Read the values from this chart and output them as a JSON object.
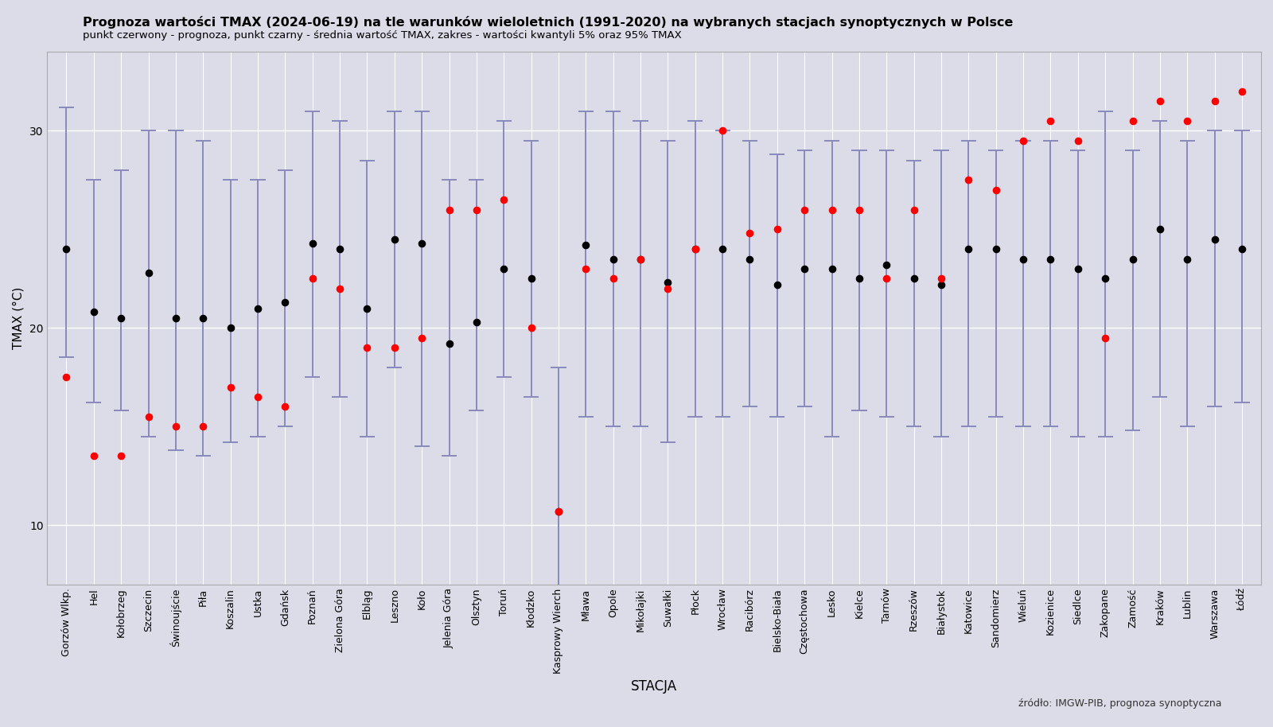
{
  "title": "Prognoza wartości TMAX (2024-06-19) na tle warunków wieloletnich (1991-2020) na wybranych stacjach synoptycznych w Polsce",
  "subtitle": "punkt czerwony - prognoza, punkt czarny - średnia wartość TMAX, zakres - wartości kwantyli 5% oraz 95% TMAX",
  "xlabel": "STACJA",
  "ylabel": "TMAX (°C)",
  "source": "źródło: IMGW-PIB, prognoza synoptyczna",
  "bg_color": "#dcdce8",
  "grid_color": "#ffffff",
  "stations": [
    "Gorzów Wlkp.",
    "Hel",
    "Kołobrzeg",
    "Szczecin",
    "Świnoujście",
    "Piła",
    "Koszalin",
    "Ustka",
    "Gdańsk",
    "Poznań",
    "Zielona Góra",
    "Elbląg",
    "Leszno",
    "Koło",
    "Jelenia Góra",
    "Olsztyn",
    "Toruń",
    "Kłodzko",
    "Kasprowy Wierch",
    "Mława",
    "Opole",
    "Mikołajki",
    "Suwałki",
    "Płock",
    "Wrocław",
    "Racibórz",
    "Bielsko-Biała",
    "Częstochowa",
    "Lesko",
    "Kielce",
    "Tarnów",
    "Rzeszów",
    "Białystok",
    "Katowice",
    "Sandomierz",
    "Wieluń",
    "Kozienice",
    "Siedlce",
    "Zakopane",
    "Zamość",
    "Kraków",
    "Lublin",
    "Warszawa",
    "Łódź"
  ],
  "forecast": [
    17.5,
    13.5,
    13.5,
    15.5,
    15.0,
    15.0,
    17.0,
    16.5,
    16.0,
    22.5,
    22.0,
    19.0,
    19.0,
    19.5,
    26.0,
    26.0,
    26.5,
    20.0,
    10.7,
    23.0,
    22.5,
    23.5,
    22.0,
    24.0,
    30.0,
    24.8,
    25.0,
    26.0,
    26.0,
    26.0,
    22.5,
    26.0,
    22.5,
    27.5,
    27.0,
    29.5,
    30.5,
    29.5,
    19.5,
    30.5,
    31.5,
    30.5,
    31.5,
    32.0
  ],
  "mean": [
    24.0,
    20.8,
    20.5,
    22.8,
    20.5,
    20.5,
    20.0,
    21.0,
    21.3,
    24.3,
    24.0,
    21.0,
    24.5,
    24.3,
    19.2,
    20.3,
    23.0,
    22.5,
    10.7,
    24.2,
    23.5,
    23.5,
    22.3,
    24.0,
    24.0,
    23.5,
    22.2,
    23.0,
    23.0,
    22.5,
    23.2,
    22.5,
    22.2,
    24.0,
    24.0,
    23.5,
    23.5,
    23.0,
    22.5,
    23.5,
    25.0,
    23.5,
    24.5,
    24.0
  ],
  "q05": [
    18.5,
    16.2,
    15.8,
    14.5,
    13.8,
    13.5,
    14.2,
    14.5,
    15.0,
    17.5,
    16.5,
    14.5,
    18.0,
    14.0,
    13.5,
    15.8,
    17.5,
    16.5,
    4.8,
    15.5,
    15.0,
    15.0,
    14.2,
    15.5,
    15.5,
    16.0,
    15.5,
    16.0,
    14.5,
    15.8,
    15.5,
    15.0,
    14.5,
    15.0,
    15.5,
    15.0,
    15.0,
    14.5,
    14.5,
    14.8,
    16.5,
    15.0,
    16.0,
    16.2
  ],
  "q95": [
    31.2,
    27.5,
    28.0,
    30.0,
    30.0,
    29.5,
    27.5,
    27.5,
    28.0,
    31.0,
    30.5,
    28.5,
    31.0,
    31.0,
    27.5,
    27.5,
    30.5,
    29.5,
    18.0,
    31.0,
    31.0,
    30.5,
    29.5,
    30.5,
    30.0,
    29.5,
    28.8,
    29.0,
    29.5,
    29.0,
    29.0,
    28.5,
    29.0,
    29.5,
    29.0,
    29.5,
    29.5,
    29.0,
    31.0,
    29.0,
    30.5,
    29.5,
    30.0,
    30.0
  ],
  "ylim": [
    7,
    34
  ],
  "yticks": [
    10,
    20,
    30
  ]
}
